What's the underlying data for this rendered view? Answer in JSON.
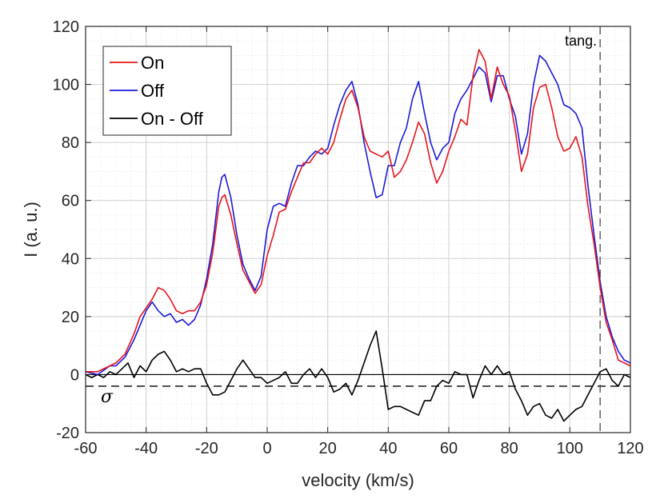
{
  "chart_data": {
    "type": "line",
    "xlabel": "velocity (km/s)",
    "ylabel": "I (a. u.)",
    "xlim": [
      -60,
      120
    ],
    "ylim": [
      -20,
      120
    ],
    "xticks": [
      -60,
      -40,
      -20,
      0,
      20,
      40,
      60,
      80,
      100,
      120
    ],
    "yticks": [
      -20,
      0,
      20,
      40,
      60,
      80,
      100,
      120
    ],
    "xtick_labels": [
      "-60",
      "-40",
      "-20",
      "0",
      "20",
      "40",
      "60",
      "80",
      "100",
      "120"
    ],
    "ytick_labels": [
      "-20",
      "0",
      "20",
      "40",
      "60",
      "80",
      "100",
      "120"
    ],
    "grid": true,
    "legend_position": "top-left",
    "series": [
      {
        "name": "On",
        "color": "#e8141c",
        "points": [
          [
            -60,
            1
          ],
          [
            -56,
            1
          ],
          [
            -52,
            3
          ],
          [
            -50,
            4
          ],
          [
            -47,
            7
          ],
          [
            -44,
            14
          ],
          [
            -42,
            20
          ],
          [
            -40,
            23
          ],
          [
            -38,
            26
          ],
          [
            -36,
            30
          ],
          [
            -34,
            29
          ],
          [
            -32,
            26
          ],
          [
            -30,
            22
          ],
          [
            -28,
            21
          ],
          [
            -26,
            22
          ],
          [
            -24,
            22
          ],
          [
            -22,
            25
          ],
          [
            -20,
            31
          ],
          [
            -18,
            42
          ],
          [
            -16,
            58
          ],
          [
            -15,
            61
          ],
          [
            -14,
            62
          ],
          [
            -12,
            55
          ],
          [
            -10,
            45
          ],
          [
            -8,
            36
          ],
          [
            -6,
            32
          ],
          [
            -4,
            28
          ],
          [
            -2,
            31
          ],
          [
            0,
            41
          ],
          [
            2,
            48
          ],
          [
            4,
            56
          ],
          [
            6,
            57
          ],
          [
            8,
            63
          ],
          [
            10,
            68
          ],
          [
            12,
            73
          ],
          [
            14,
            73
          ],
          [
            16,
            76
          ],
          [
            18,
            78
          ],
          [
            20,
            76
          ],
          [
            22,
            80
          ],
          [
            24,
            88
          ],
          [
            26,
            95
          ],
          [
            28,
            98
          ],
          [
            30,
            92
          ],
          [
            32,
            82
          ],
          [
            34,
            77
          ],
          [
            36,
            76
          ],
          [
            38,
            75
          ],
          [
            40,
            77
          ],
          [
            42,
            68
          ],
          [
            44,
            70
          ],
          [
            46,
            74
          ],
          [
            48,
            80
          ],
          [
            50,
            87
          ],
          [
            52,
            83
          ],
          [
            54,
            73
          ],
          [
            56,
            66
          ],
          [
            58,
            70
          ],
          [
            60,
            77
          ],
          [
            62,
            82
          ],
          [
            64,
            88
          ],
          [
            66,
            86
          ],
          [
            68,
            103
          ],
          [
            70,
            112
          ],
          [
            72,
            108
          ],
          [
            74,
            95
          ],
          [
            76,
            106
          ],
          [
            78,
            100
          ],
          [
            80,
            96
          ],
          [
            82,
            84
          ],
          [
            84,
            70
          ],
          [
            86,
            76
          ],
          [
            88,
            92
          ],
          [
            90,
            99
          ],
          [
            92,
            100
          ],
          [
            94,
            92
          ],
          [
            96,
            82
          ],
          [
            98,
            77
          ],
          [
            100,
            78
          ],
          [
            102,
            82
          ],
          [
            104,
            75
          ],
          [
            106,
            58
          ],
          [
            108,
            45
          ],
          [
            110,
            30
          ],
          [
            112,
            18
          ],
          [
            114,
            12
          ],
          [
            116,
            5
          ],
          [
            118,
            4
          ],
          [
            120,
            3
          ]
        ]
      },
      {
        "name": "Off",
        "color": "#1a1adc",
        "points": [
          [
            -60,
            1
          ],
          [
            -56,
            0
          ],
          [
            -52,
            3
          ],
          [
            -50,
            3
          ],
          [
            -47,
            6
          ],
          [
            -44,
            12
          ],
          [
            -42,
            17
          ],
          [
            -40,
            22
          ],
          [
            -38,
            25
          ],
          [
            -36,
            22
          ],
          [
            -34,
            20
          ],
          [
            -32,
            21
          ],
          [
            -30,
            18
          ],
          [
            -28,
            19
          ],
          [
            -26,
            17
          ],
          [
            -24,
            19
          ],
          [
            -22,
            24
          ],
          [
            -20,
            33
          ],
          [
            -18,
            45
          ],
          [
            -16,
            63
          ],
          [
            -15,
            68
          ],
          [
            -14,
            69
          ],
          [
            -12,
            61
          ],
          [
            -10,
            48
          ],
          [
            -8,
            38
          ],
          [
            -6,
            33
          ],
          [
            -4,
            29
          ],
          [
            -2,
            34
          ],
          [
            0,
            50
          ],
          [
            2,
            58
          ],
          [
            4,
            59
          ],
          [
            6,
            58
          ],
          [
            8,
            66
          ],
          [
            10,
            72
          ],
          [
            12,
            72
          ],
          [
            14,
            75
          ],
          [
            16,
            77
          ],
          [
            18,
            76
          ],
          [
            20,
            78
          ],
          [
            22,
            86
          ],
          [
            24,
            93
          ],
          [
            26,
            98
          ],
          [
            28,
            101
          ],
          [
            30,
            93
          ],
          [
            32,
            80
          ],
          [
            34,
            70
          ],
          [
            36,
            61
          ],
          [
            38,
            62
          ],
          [
            40,
            72
          ],
          [
            42,
            72
          ],
          [
            44,
            80
          ],
          [
            46,
            85
          ],
          [
            48,
            95
          ],
          [
            50,
            101
          ],
          [
            52,
            90
          ],
          [
            54,
            80
          ],
          [
            56,
            74
          ],
          [
            58,
            78
          ],
          [
            60,
            80
          ],
          [
            62,
            90
          ],
          [
            64,
            95
          ],
          [
            66,
            98
          ],
          [
            68,
            102
          ],
          [
            70,
            106
          ],
          [
            72,
            104
          ],
          [
            74,
            94
          ],
          [
            76,
            103
          ],
          [
            78,
            103
          ],
          [
            80,
            95
          ],
          [
            82,
            89
          ],
          [
            84,
            76
          ],
          [
            86,
            83
          ],
          [
            88,
            100
          ],
          [
            90,
            110
          ],
          [
            92,
            108
          ],
          [
            94,
            104
          ],
          [
            96,
            100
          ],
          [
            98,
            93
          ],
          [
            100,
            92
          ],
          [
            102,
            90
          ],
          [
            104,
            85
          ],
          [
            106,
            65
          ],
          [
            108,
            48
          ],
          [
            110,
            32
          ],
          [
            112,
            20
          ],
          [
            114,
            13
          ],
          [
            116,
            8
          ],
          [
            118,
            5
          ],
          [
            120,
            4
          ]
        ]
      },
      {
        "name": "On - Off",
        "color": "#000000",
        "points": [
          [
            -60,
            0
          ],
          [
            -58,
            -1
          ],
          [
            -56,
            0
          ],
          [
            -54,
            -1
          ],
          [
            -52,
            1
          ],
          [
            -50,
            0
          ],
          [
            -48,
            2
          ],
          [
            -46,
            4
          ],
          [
            -44,
            -1
          ],
          [
            -42,
            3
          ],
          [
            -40,
            1
          ],
          [
            -38,
            5
          ],
          [
            -36,
            7
          ],
          [
            -34,
            8
          ],
          [
            -32,
            5
          ],
          [
            -30,
            1
          ],
          [
            -28,
            2
          ],
          [
            -26,
            1
          ],
          [
            -24,
            2
          ],
          [
            -22,
            2
          ],
          [
            -20,
            -3
          ],
          [
            -18,
            -7
          ],
          [
            -16,
            -7
          ],
          [
            -14,
            -6
          ],
          [
            -12,
            -2
          ],
          [
            -10,
            2
          ],
          [
            -8,
            5
          ],
          [
            -6,
            2
          ],
          [
            -4,
            -1
          ],
          [
            -2,
            -1
          ],
          [
            0,
            -3
          ],
          [
            2,
            -2
          ],
          [
            4,
            -1
          ],
          [
            6,
            1
          ],
          [
            8,
            -3
          ],
          [
            10,
            -3
          ],
          [
            12,
            0
          ],
          [
            14,
            2
          ],
          [
            16,
            -1
          ],
          [
            18,
            2
          ],
          [
            20,
            -1
          ],
          [
            22,
            -6
          ],
          [
            24,
            -5
          ],
          [
            26,
            -3
          ],
          [
            28,
            -7
          ],
          [
            30,
            -2
          ],
          [
            32,
            4
          ],
          [
            34,
            10
          ],
          [
            36,
            15
          ],
          [
            38,
            2
          ],
          [
            40,
            -12
          ],
          [
            42,
            -11
          ],
          [
            44,
            -11
          ],
          [
            46,
            -12
          ],
          [
            48,
            -13
          ],
          [
            50,
            -14
          ],
          [
            52,
            -9
          ],
          [
            54,
            -9
          ],
          [
            56,
            -4
          ],
          [
            58,
            -2
          ],
          [
            60,
            -3
          ],
          [
            62,
            1
          ],
          [
            64,
            0
          ],
          [
            66,
            0
          ],
          [
            68,
            -8
          ],
          [
            70,
            -2
          ],
          [
            72,
            3
          ],
          [
            74,
            0
          ],
          [
            76,
            3
          ],
          [
            78,
            0
          ],
          [
            80,
            1
          ],
          [
            82,
            -5
          ],
          [
            84,
            -9
          ],
          [
            86,
            -14
          ],
          [
            88,
            -11
          ],
          [
            90,
            -10
          ],
          [
            92,
            -14
          ],
          [
            94,
            -15
          ],
          [
            96,
            -12
          ],
          [
            98,
            -16
          ],
          [
            100,
            -14
          ],
          [
            102,
            -12
          ],
          [
            104,
            -11
          ],
          [
            106,
            -7
          ],
          [
            108,
            -3
          ],
          [
            110,
            1
          ],
          [
            112,
            2
          ],
          [
            114,
            -2
          ],
          [
            116,
            -4
          ],
          [
            118,
            0
          ],
          [
            120,
            -1
          ]
        ]
      }
    ],
    "zero_line": 0,
    "sigma_line": -4,
    "sigma_label": "σ",
    "vertical_marker": 110,
    "annotations": [
      {
        "text": "tang.",
        "x": 110
      }
    ]
  }
}
